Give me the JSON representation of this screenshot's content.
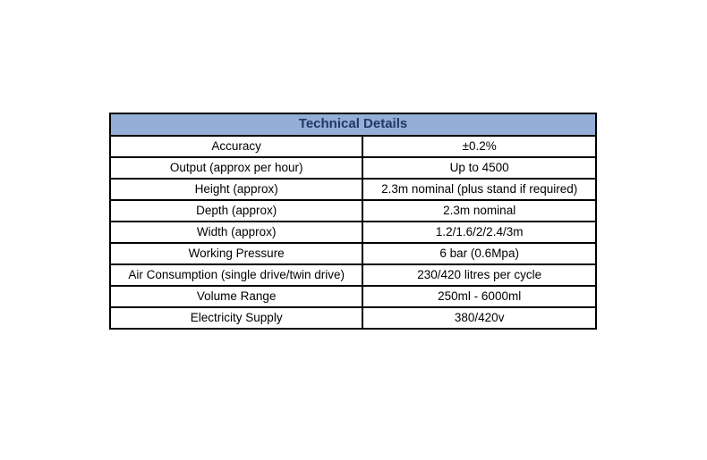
{
  "table": {
    "title": "Technical Details",
    "header_bg": "#94AED8",
    "header_text_color": "#1F3864",
    "border_color": "#000000",
    "rows": [
      {
        "label": "Accuracy",
        "value": "±0.2%"
      },
      {
        "label": "Output (approx per hour)",
        "value": "Up to 4500"
      },
      {
        "label": "Height (approx)",
        "value": "2.3m nominal (plus stand if required)"
      },
      {
        "label": "Depth (approx)",
        "value": "2.3m nominal"
      },
      {
        "label": "Width (approx)",
        "value": "1.2/1.6/2/2.4/3m"
      },
      {
        "label": "Working Pressure",
        "value": "6 bar (0.6Mpa)"
      },
      {
        "label": "Air Consumption (single drive/twin drive)",
        "value": "230/420 litres per cycle"
      },
      {
        "label": "Volume Range",
        "value": "250ml - 6000ml"
      },
      {
        "label": "Electricity Supply",
        "value": "380/420v"
      }
    ]
  }
}
